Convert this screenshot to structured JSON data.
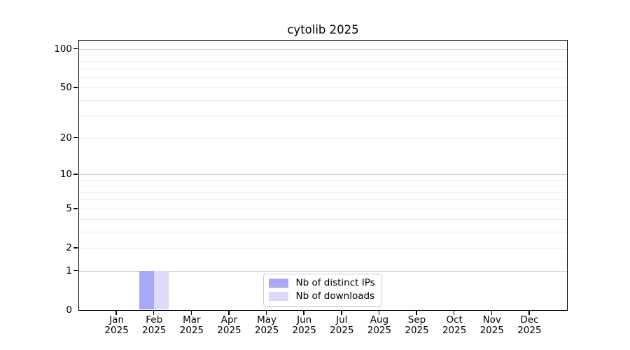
{
  "figure": {
    "background": "#ffffff"
  },
  "chart_data": {
    "type": "bar",
    "title": "cytolib 2025",
    "categories": [
      "Jan",
      "Feb",
      "Mar",
      "Apr",
      "May",
      "Jun",
      "Jul",
      "Aug",
      "Sep",
      "Oct",
      "Nov",
      "Dec"
    ],
    "year_label": "2025",
    "series": [
      {
        "name": "Nb of distinct IPs",
        "color": "#a8a8f6",
        "values": [
          0,
          1,
          0,
          0,
          0,
          0,
          0,
          0,
          0,
          0,
          0,
          0
        ]
      },
      {
        "name": "Nb of downloads",
        "color": "#dbdbf9",
        "values": [
          0,
          1,
          0,
          0,
          0,
          0,
          0,
          0,
          0,
          0,
          0,
          0
        ]
      }
    ],
    "yscale": "log1p",
    "ylim": [
      0,
      116.5
    ],
    "ytick_values": [
      0,
      1,
      2,
      5,
      10,
      20,
      50,
      100
    ],
    "ytick_labels": [
      "0",
      "1",
      "2",
      "5",
      "10",
      "20",
      "50",
      "100"
    ],
    "grid": {
      "major_decades": [
        1,
        10,
        100
      ],
      "minor_on": true,
      "major_color": "#c6c6c6",
      "minor_color": "#eaeaea"
    },
    "legend_position": "lower center",
    "axis_color": "#000000",
    "text_color": "#000000"
  }
}
